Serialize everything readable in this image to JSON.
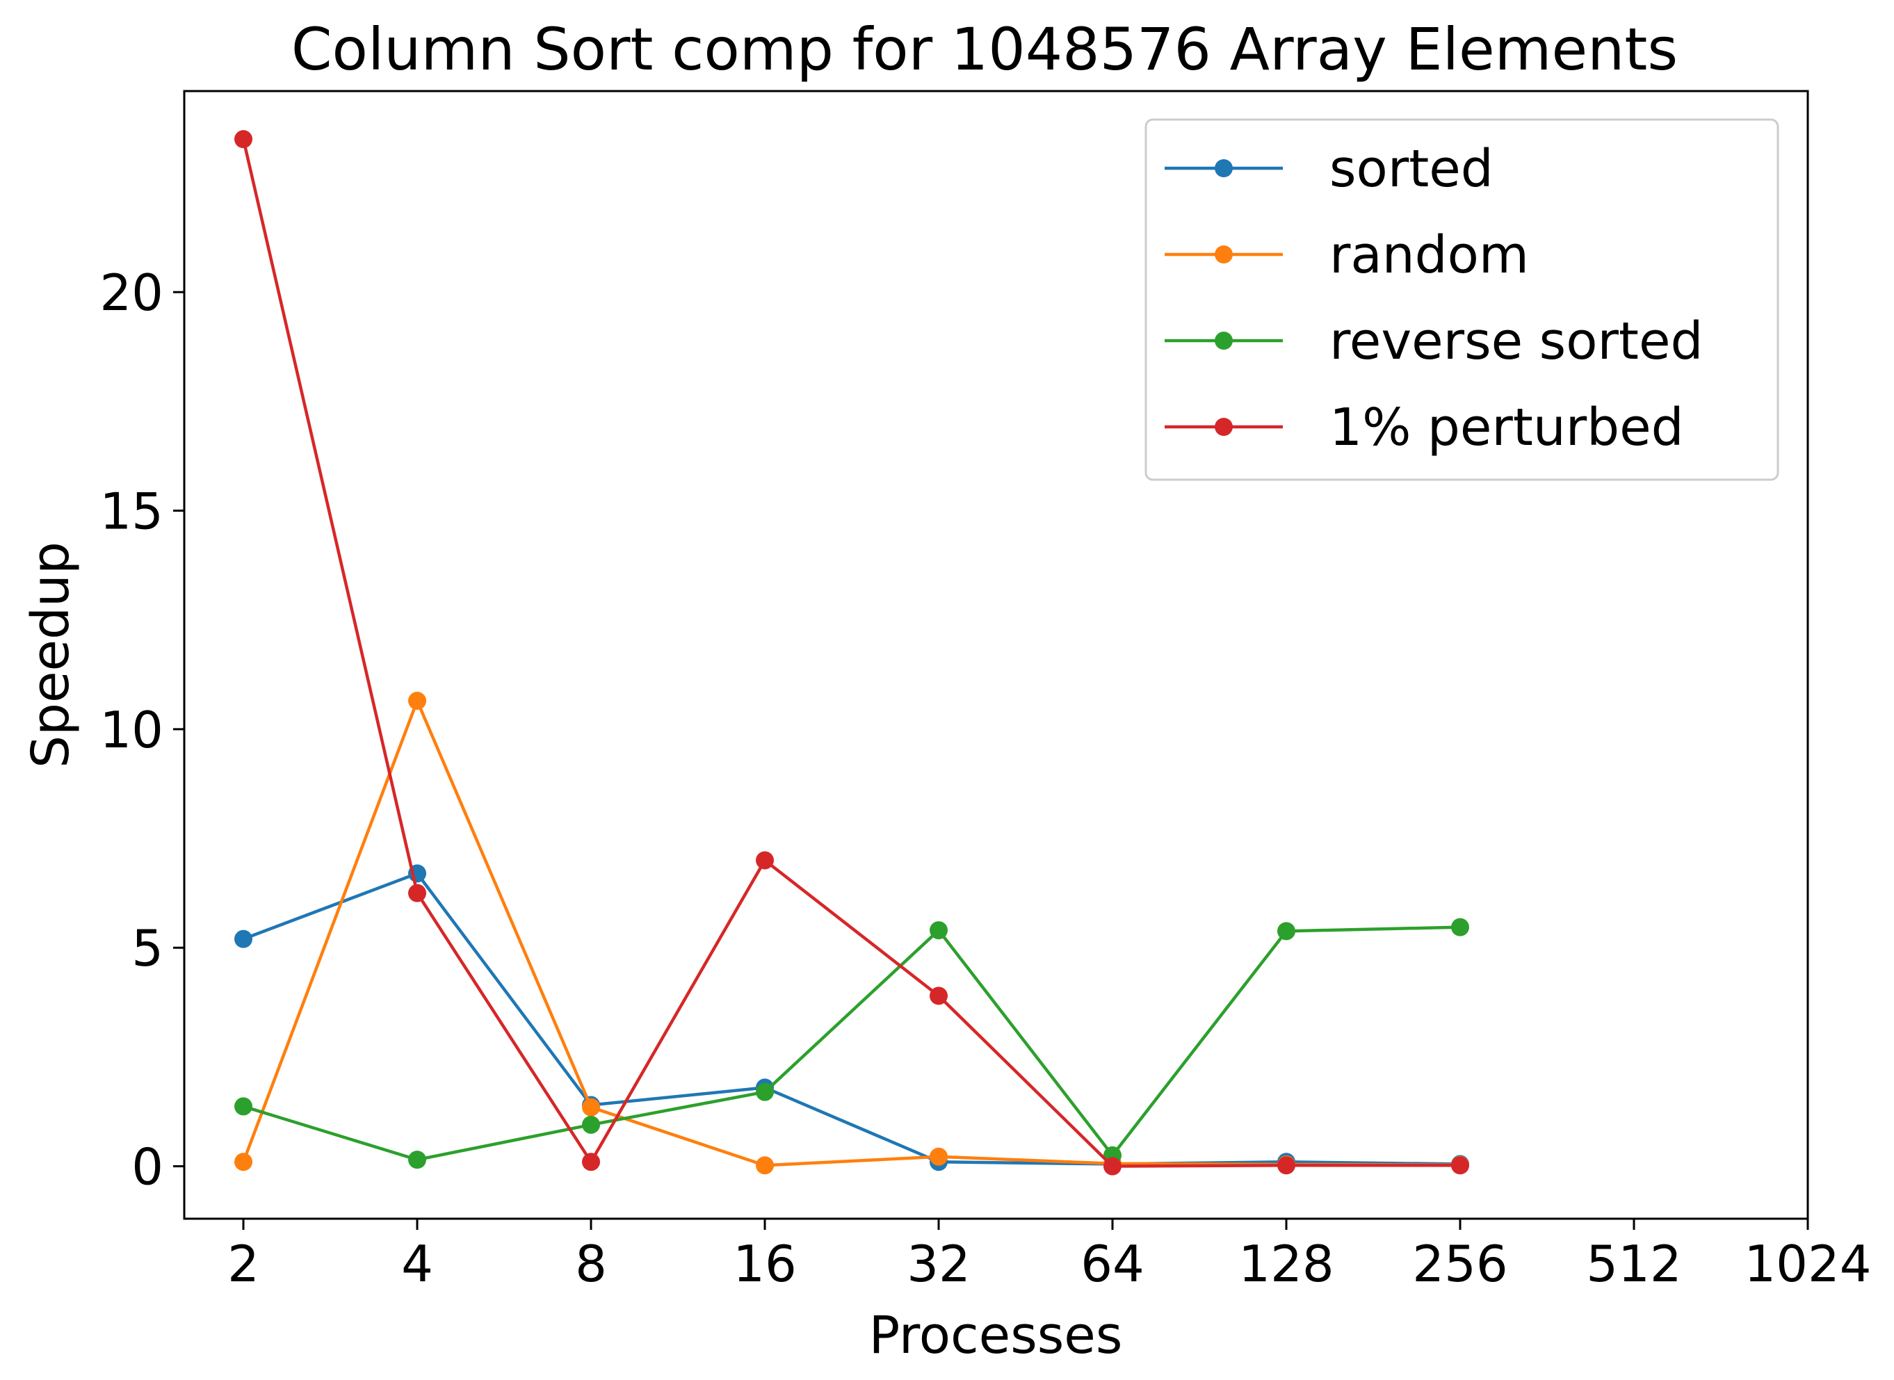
{
  "chart_data": {
    "type": "line",
    "title": "Column Sort comp for 1048576 Array Elements",
    "xlabel": "Processes",
    "ylabel": "Speedup",
    "x_scale": "log2",
    "x_ticks": [
      "2",
      "4",
      "8",
      "16",
      "32",
      "64",
      "128",
      "256",
      "512",
      "1024"
    ],
    "x_tick_values": [
      2,
      4,
      8,
      16,
      32,
      64,
      128,
      256,
      512,
      1024
    ],
    "y_ticks": [
      "0",
      "5",
      "10",
      "15",
      "20"
    ],
    "y_tick_values": [
      0,
      5,
      10,
      15,
      20
    ],
    "xlim": [
      1.58,
      1024
    ],
    "ylim": [
      -1.2,
      24.6
    ],
    "grid": false,
    "legend_position": "top-right",
    "x": [
      2,
      4,
      8,
      16,
      32,
      64,
      128,
      256
    ],
    "series": [
      {
        "name": "sorted",
        "color": "#1f77b4",
        "values": [
          5.2,
          6.7,
          1.4,
          1.8,
          0.1,
          0.05,
          0.1,
          0.05
        ]
      },
      {
        "name": "random",
        "color": "#ff7f0e",
        "values": [
          0.1,
          10.65,
          1.35,
          0.02,
          0.22,
          0.06,
          0.04,
          0.03
        ]
      },
      {
        "name": "reverse sorted",
        "color": "#2ca02c",
        "values": [
          1.37,
          0.15,
          0.95,
          1.7,
          5.4,
          0.25,
          5.38,
          5.47
        ]
      },
      {
        "name": "1% perturbed",
        "color": "#d62728",
        "values": [
          23.5,
          6.25,
          0.1,
          7.0,
          3.9,
          0.0,
          0.02,
          0.02
        ]
      }
    ]
  }
}
